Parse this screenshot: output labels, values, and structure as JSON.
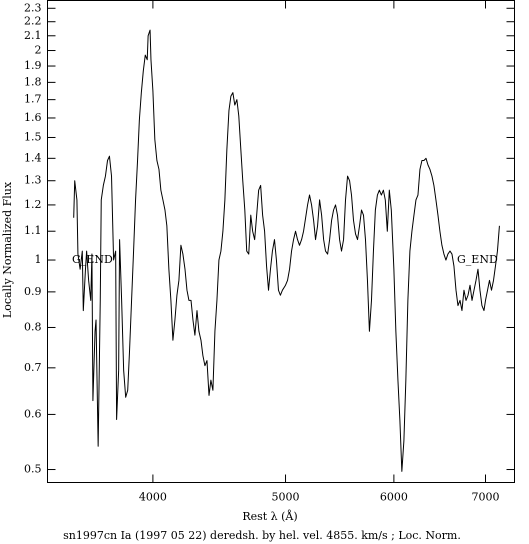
{
  "chart_data": {
    "type": "line",
    "title": "sn1997cn Ia (1997 05 22) deredsh. by hel. vel.  4855. km/s ;  Loc. Norm.",
    "xlabel": "Rest λ (Å)",
    "ylabel": "Locally Normalized Flux",
    "annotations": [
      "G_END",
      "G_END"
    ],
    "color": "#000000",
    "xscale": "log",
    "yscale": "log",
    "xlim": [
      3350,
      7350
    ],
    "ylim": [
      0.479,
      2.36
    ],
    "xticks": [
      4000,
      5000,
      6000,
      7000
    ],
    "yticks": [
      0.5,
      0.6,
      0.7,
      0.8,
      0.9,
      1,
      1.1,
      1.2,
      1.3,
      1.4,
      1.5,
      1.6,
      1.7,
      1.8,
      1.9,
      2,
      2.1,
      2.2,
      2.3
    ],
    "x": [
      3501,
      3507,
      3520,
      3526,
      3539,
      3552,
      3558,
      3571,
      3578,
      3590,
      3603,
      3610,
      3616,
      3629,
      3635,
      3648,
      3661,
      3667,
      3680,
      3693,
      3706,
      3718,
      3731,
      3744,
      3757,
      3763,
      3776,
      3782,
      3795,
      3808,
      3821,
      3834,
      3846,
      3859,
      3872,
      3885,
      3898,
      3910,
      3923,
      3936,
      3949,
      3962,
      3968,
      3981,
      3987,
      4000,
      4013,
      4027,
      4041,
      4054,
      4068,
      4082,
      4095,
      4109,
      4123,
      4137,
      4151,
      4165,
      4179,
      4193,
      4207,
      4222,
      4236,
      4250,
      4265,
      4279,
      4293,
      4308,
      4322,
      4337,
      4351,
      4366,
      4381,
      4396,
      4410,
      4425,
      4440,
      4455,
      4470,
      4485,
      4500,
      4515,
      4530,
      4546,
      4561,
      4576,
      4591,
      4607,
      4622,
      4638,
      4653,
      4669,
      4684,
      4700,
      4716,
      4731,
      4747,
      4763,
      4779,
      4795,
      4811,
      4827,
      4843,
      4859,
      4875,
      4891,
      4908,
      4924,
      4941,
      4957,
      4974,
      5000,
      5017,
      5034,
      5051,
      5068,
      5085,
      5102,
      5119,
      5137,
      5154,
      5172,
      5189,
      5206,
      5224,
      5242,
      5259,
      5277,
      5295,
      5313,
      5331,
      5348,
      5367,
      5385,
      5403,
      5421,
      5439,
      5457,
      5476,
      5494,
      5513,
      5531,
      5550,
      5569,
      5587,
      5606,
      5625,
      5644,
      5663,
      5682,
      5701,
      5720,
      5739,
      5758,
      5778,
      5797,
      5816,
      5836,
      5855,
      5875,
      5895,
      5914,
      5934,
      5954,
      5974,
      6000,
      6020,
      6041,
      6061,
      6081,
      6102,
      6122,
      6143,
      6164,
      6185,
      6206,
      6227,
      6248,
      6269,
      6290,
      6311,
      6333,
      6354,
      6375,
      6397,
      6418,
      6440,
      6462,
      6483,
      6505,
      6527,
      6549,
      6571,
      6594,
      6616,
      6638,
      6661,
      6683,
      6706,
      6728,
      6751,
      6774,
      6797,
      6820,
      6843,
      6866,
      6889,
      6912,
      6935,
      6958,
      6982,
      7000,
      7024,
      7047,
      7071,
      7095,
      7118,
      7142,
      7166
    ],
    "values": [
      1.15,
      1.3,
      1.22,
      1.02,
      0.97,
      1.03,
      0.846,
      0.97,
      1.03,
      0.935,
      0.875,
      1.02,
      0.628,
      0.79,
      0.82,
      0.54,
      0.875,
      1.22,
      1.28,
      1.32,
      1.39,
      1.41,
      1.32,
      1.0,
      1.03,
      0.59,
      0.694,
      1.07,
      0.875,
      0.694,
      0.635,
      0.65,
      0.742,
      0.875,
      1.03,
      1.22,
      1.39,
      1.59,
      1.74,
      1.87,
      1.97,
      1.94,
      2.1,
      2.14,
      1.94,
      1.75,
      1.49,
      1.39,
      1.35,
      1.26,
      1.22,
      1.18,
      1.12,
      0.97,
      0.875,
      0.767,
      0.82,
      0.89,
      0.935,
      1.05,
      1.02,
      0.97,
      0.905,
      0.875,
      0.875,
      0.82,
      0.78,
      0.846,
      0.79,
      0.767,
      0.729,
      0.705,
      0.717,
      0.639,
      0.672,
      0.65,
      0.79,
      0.875,
      1.0,
      1.03,
      1.1,
      1.22,
      1.44,
      1.64,
      1.72,
      1.74,
      1.67,
      1.7,
      1.61,
      1.44,
      1.3,
      1.18,
      1.03,
      1.02,
      1.16,
      1.1,
      1.07,
      1.16,
      1.26,
      1.28,
      1.16,
      1.1,
      0.98,
      0.905,
      0.97,
      1.03,
      1.07,
      1.0,
      0.905,
      0.89,
      0.905,
      0.92,
      0.935,
      0.97,
      1.03,
      1.07,
      1.1,
      1.07,
      1.05,
      1.07,
      1.1,
      1.15,
      1.2,
      1.24,
      1.2,
      1.14,
      1.07,
      1.12,
      1.22,
      1.16,
      1.07,
      1.03,
      1.02,
      1.07,
      1.14,
      1.18,
      1.2,
      1.16,
      1.07,
      1.03,
      1.07,
      1.22,
      1.32,
      1.3,
      1.24,
      1.14,
      1.09,
      1.07,
      1.12,
      1.18,
      1.16,
      1.07,
      0.935,
      0.79,
      0.875,
      1.03,
      1.18,
      1.24,
      1.26,
      1.24,
      1.26,
      1.22,
      1.1,
      1.26,
      1.18,
      0.97,
      0.79,
      0.672,
      0.588,
      0.497,
      0.55,
      0.672,
      0.875,
      1.03,
      1.1,
      1.16,
      1.22,
      1.24,
      1.35,
      1.39,
      1.39,
      1.4,
      1.37,
      1.35,
      1.32,
      1.28,
      1.22,
      1.16,
      1.1,
      1.05,
      1.02,
      1.0,
      1.02,
      1.03,
      1.02,
      0.98,
      0.905,
      0.86,
      0.875,
      0.846,
      0.905,
      0.875,
      0.89,
      0.92,
      0.875,
      0.905,
      0.935,
      0.97,
      0.905,
      0.86,
      0.846,
      0.875,
      0.905,
      0.935,
      0.905,
      0.935,
      0.98,
      1.03,
      1.12
    ]
  }
}
